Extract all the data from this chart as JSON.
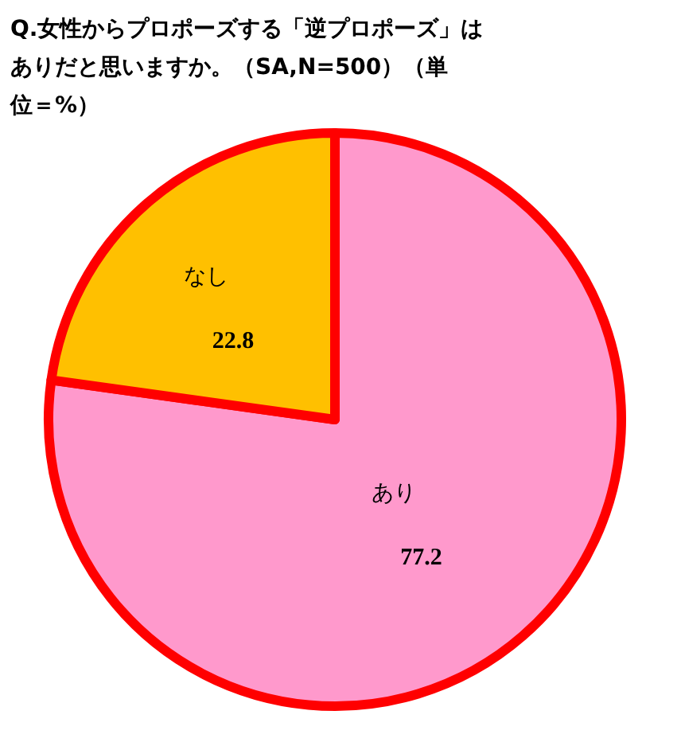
{
  "chart_data": {
    "type": "pie",
    "title": "Q.女性からプロポーズする「逆プロポーズ」はありだと思いますか。（SA,N=500）（単位＝%）",
    "categories": [
      "あり",
      "なし"
    ],
    "values": [
      77.2,
      22.8
    ],
    "colors": [
      "#ff99cc",
      "#ffc000"
    ],
    "data_labels": true
  }
}
